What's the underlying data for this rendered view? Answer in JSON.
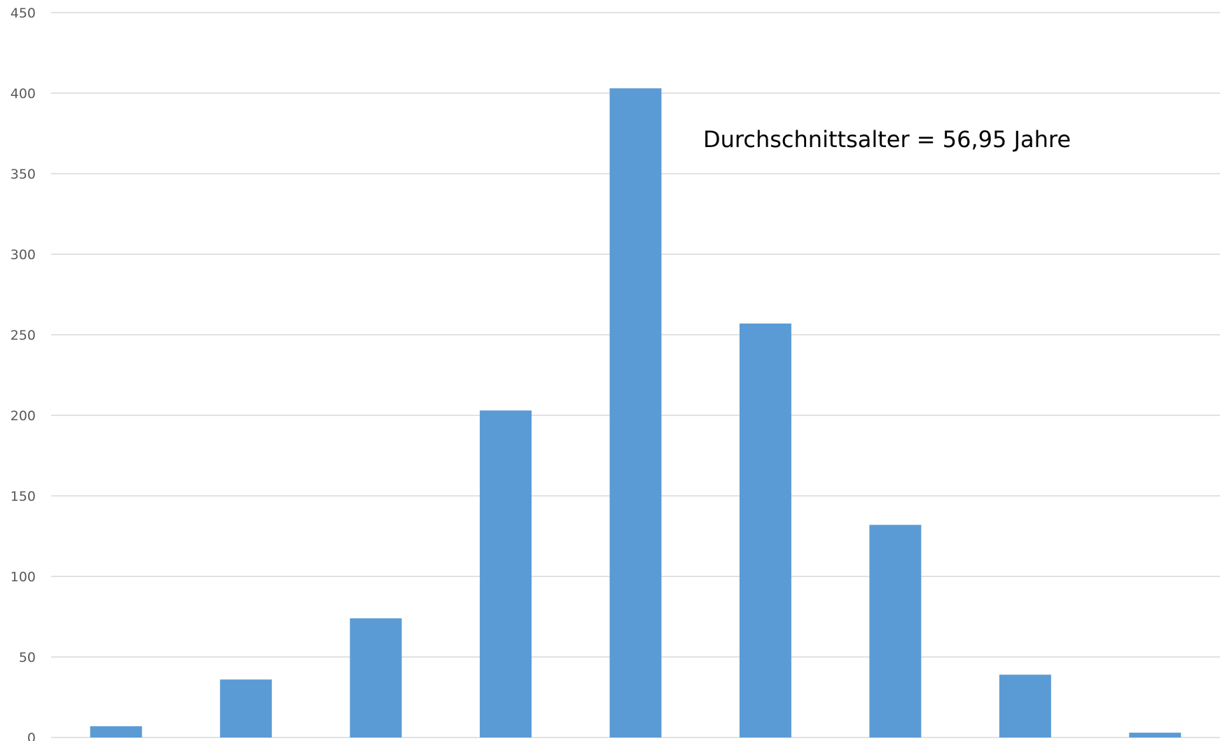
{
  "chart_data": {
    "type": "bar",
    "categories": [
      "",
      "",
      "",
      "",
      "",
      "",
      "",
      "",
      ""
    ],
    "values": [
      7,
      36,
      74,
      203,
      403,
      257,
      132,
      39,
      3
    ],
    "title": "",
    "xlabel": "",
    "ylabel": "",
    "ylim": [
      0,
      450
    ],
    "yticks": [
      "0",
      "50",
      "100",
      "150",
      "200",
      "250",
      "300",
      "350",
      "400",
      "450"
    ],
    "grid": true,
    "legend": "none",
    "bar_color": "#5b9bd5",
    "annotation": "Durchschnittsalter = 56,95 Jahre"
  }
}
